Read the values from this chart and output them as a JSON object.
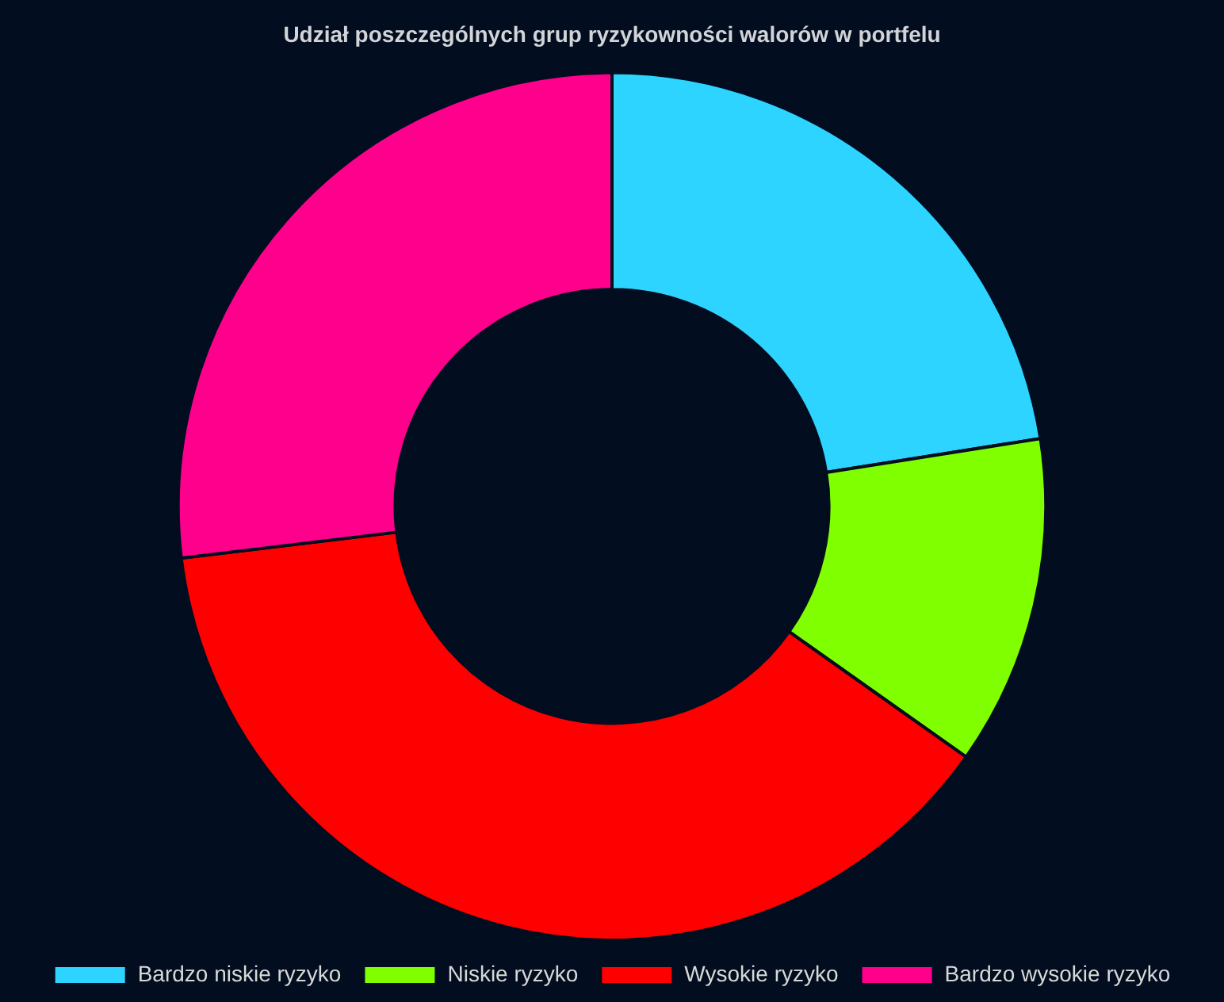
{
  "chart_data": {
    "type": "donut",
    "title": "Udział poszczególnych grup ryzykowności walorów w portfelu",
    "categories": [
      "Bardzo niskie ryzyko",
      "Niskie ryzyko",
      "Wysokie ryzyko",
      "Bardzo wysokie ryzyko"
    ],
    "values": [
      22.5,
      12.3,
      38.3,
      26.9
    ],
    "colors": [
      "#2dd4ff",
      "#80ff00",
      "#ff0000",
      "#ff008c"
    ],
    "legend": "bottom"
  }
}
